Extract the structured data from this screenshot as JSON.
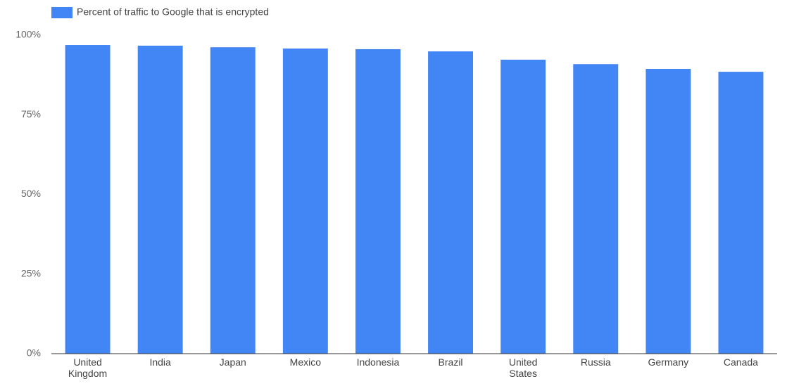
{
  "chart_data": {
    "type": "bar",
    "legend": "Percent of traffic to Google that is encrypted",
    "categories": [
      "United Kingdom",
      "India",
      "Japan",
      "Mexico",
      "Indonesia",
      "Brazil",
      "United States",
      "Russia",
      "Germany",
      "Canada"
    ],
    "values": [
      96.9,
      96.7,
      96.2,
      95.8,
      95.6,
      94.9,
      92.3,
      90.9,
      89.4,
      88.5
    ],
    "color": "#4285f4",
    "ylim": [
      0,
      100
    ],
    "yticks": [
      {
        "value": 0,
        "label": "0%"
      },
      {
        "value": 25,
        "label": "25%"
      },
      {
        "value": 50,
        "label": "50%"
      },
      {
        "value": 75,
        "label": "75%"
      },
      {
        "value": 100,
        "label": "100%"
      }
    ],
    "grid": false
  }
}
